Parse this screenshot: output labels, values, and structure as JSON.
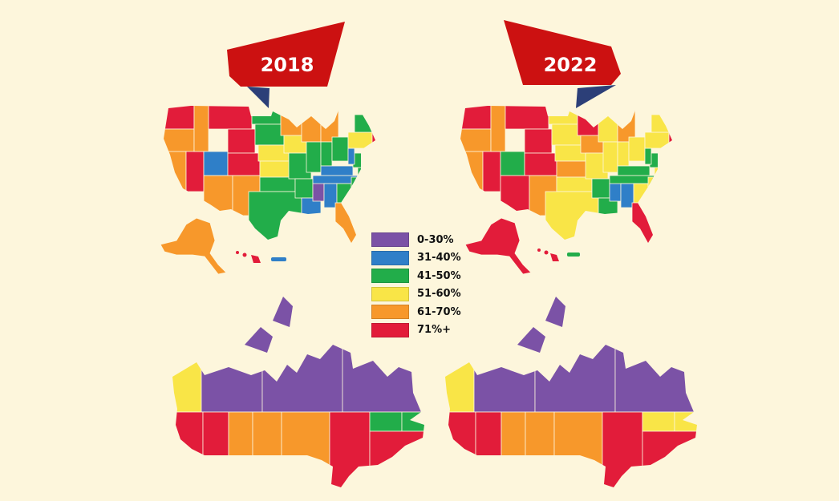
{
  "colors": {
    "background": "#fdf6dc",
    "banner": "#cc1111",
    "banner_fold": "#2c3f78",
    "c0_30": "#7b52a6",
    "c31_40": "#2f7fc8",
    "c41_50": "#22ad4a",
    "c51_60": "#f9e547",
    "c61_70": "#f7982b",
    "c71_plus": "#e21c3a"
  },
  "panels": [
    {
      "year": "2018"
    },
    {
      "year": "2022"
    }
  ],
  "legend": {
    "items": [
      {
        "label": "0-30%",
        "color": "#7b52a6"
      },
      {
        "label": "31-40%",
        "color": "#2f7fc8"
      },
      {
        "label": "41-50%",
        "color": "#22ad4a"
      },
      {
        "label": "51-60%",
        "color": "#f9e547"
      },
      {
        "label": "61-70%",
        "color": "#f7982b"
      },
      {
        "label": "71%+",
        "color": "#e21c3a"
      }
    ]
  }
}
